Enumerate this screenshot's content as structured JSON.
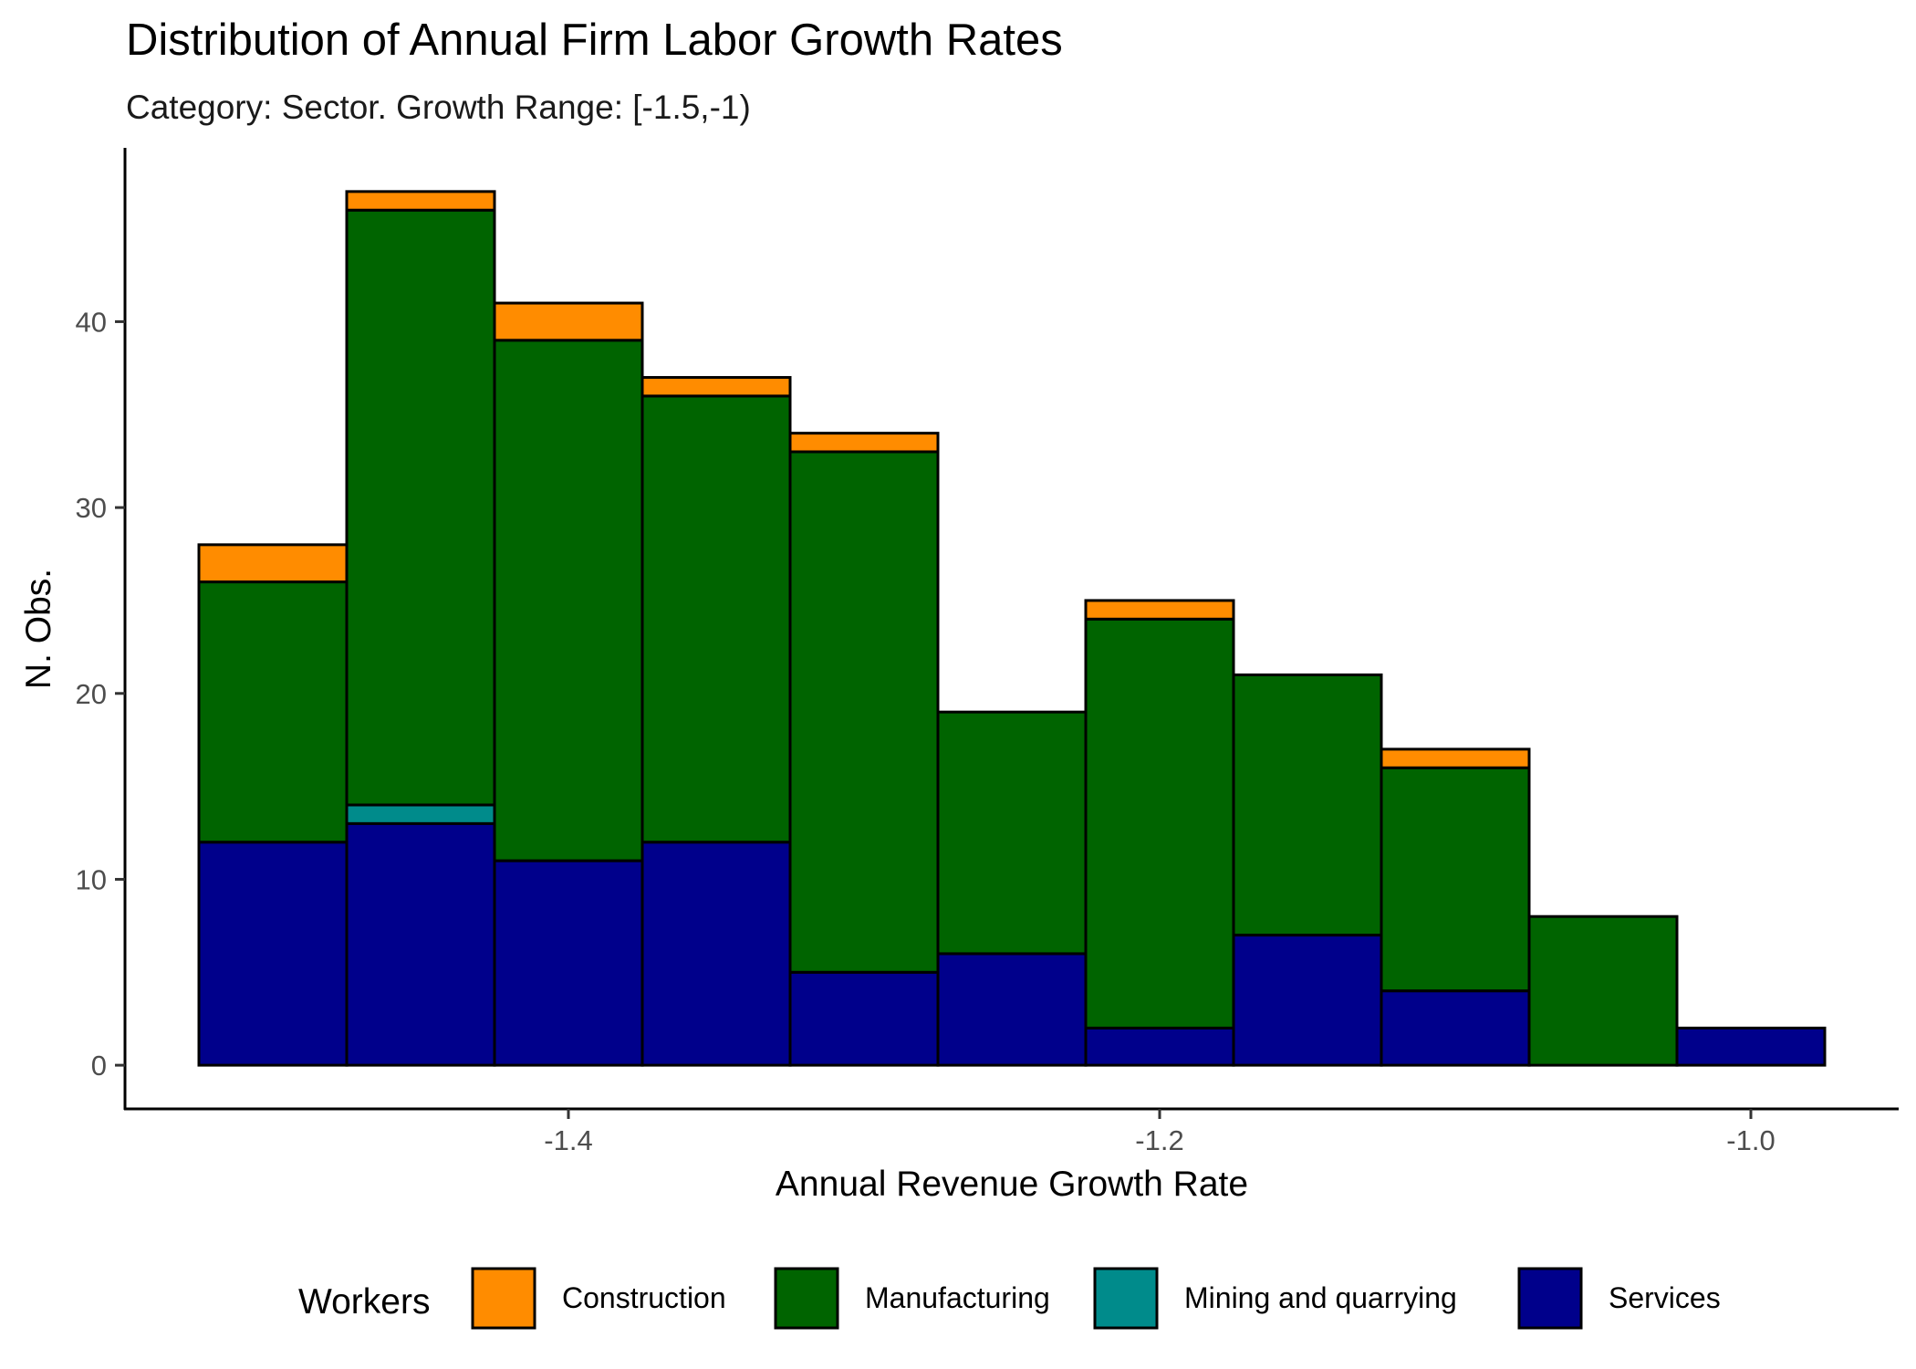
{
  "chart_data": {
    "type": "bar",
    "stacked": true,
    "title": "Distribution of Annual Firm Labor Growth Rates",
    "subtitle": "Category: Sector. Growth Range: [-1.5,-1)",
    "xlabel": "Annual Revenue Growth Rate",
    "ylabel": "N. Obs.",
    "x_bins": [
      [
        -1.525,
        -1.475
      ],
      [
        -1.475,
        -1.425
      ],
      [
        -1.425,
        -1.375
      ],
      [
        -1.375,
        -1.325
      ],
      [
        -1.325,
        -1.275
      ],
      [
        -1.275,
        -1.225
      ],
      [
        -1.225,
        -1.175
      ],
      [
        -1.175,
        -1.125
      ],
      [
        -1.125,
        -1.075
      ],
      [
        -1.075,
        -1.025
      ],
      [
        -1.025,
        -0.975
      ]
    ],
    "x_ticks": [
      -1.4,
      -1.2,
      -1.0
    ],
    "x_tick_labels": [
      "-1.4",
      "-1.2",
      "-1.0"
    ],
    "y_ticks": [
      0,
      10,
      20,
      30,
      40
    ],
    "y_tick_labels": [
      "0",
      "10",
      "20",
      "30",
      "40"
    ],
    "xlim": [
      -1.55,
      -0.95
    ],
    "ylim": [
      -2.35,
      49.35
    ],
    "grid": false,
    "legend_title": "Workers",
    "legend_position": "bottom",
    "series": [
      {
        "name": "Services",
        "color": "#00008B",
        "values": [
          12,
          13,
          11,
          12,
          5,
          6,
          2,
          7,
          4,
          0,
          2
        ]
      },
      {
        "name": "Mining and quarrying",
        "color": "#008B8B",
        "values": [
          0,
          1,
          0,
          0,
          0,
          0,
          0,
          0,
          0,
          0,
          0
        ]
      },
      {
        "name": "Manufacturing",
        "color": "#006400",
        "values": [
          14,
          32,
          28,
          24,
          28,
          13,
          22,
          14,
          12,
          8,
          0
        ]
      },
      {
        "name": "Construction",
        "color": "#FF8C00",
        "values": [
          2,
          1,
          2,
          1,
          1,
          0,
          1,
          0,
          1,
          0,
          0
        ]
      }
    ],
    "legend_order": [
      "Construction",
      "Manufacturing",
      "Mining and quarrying",
      "Services"
    ]
  }
}
